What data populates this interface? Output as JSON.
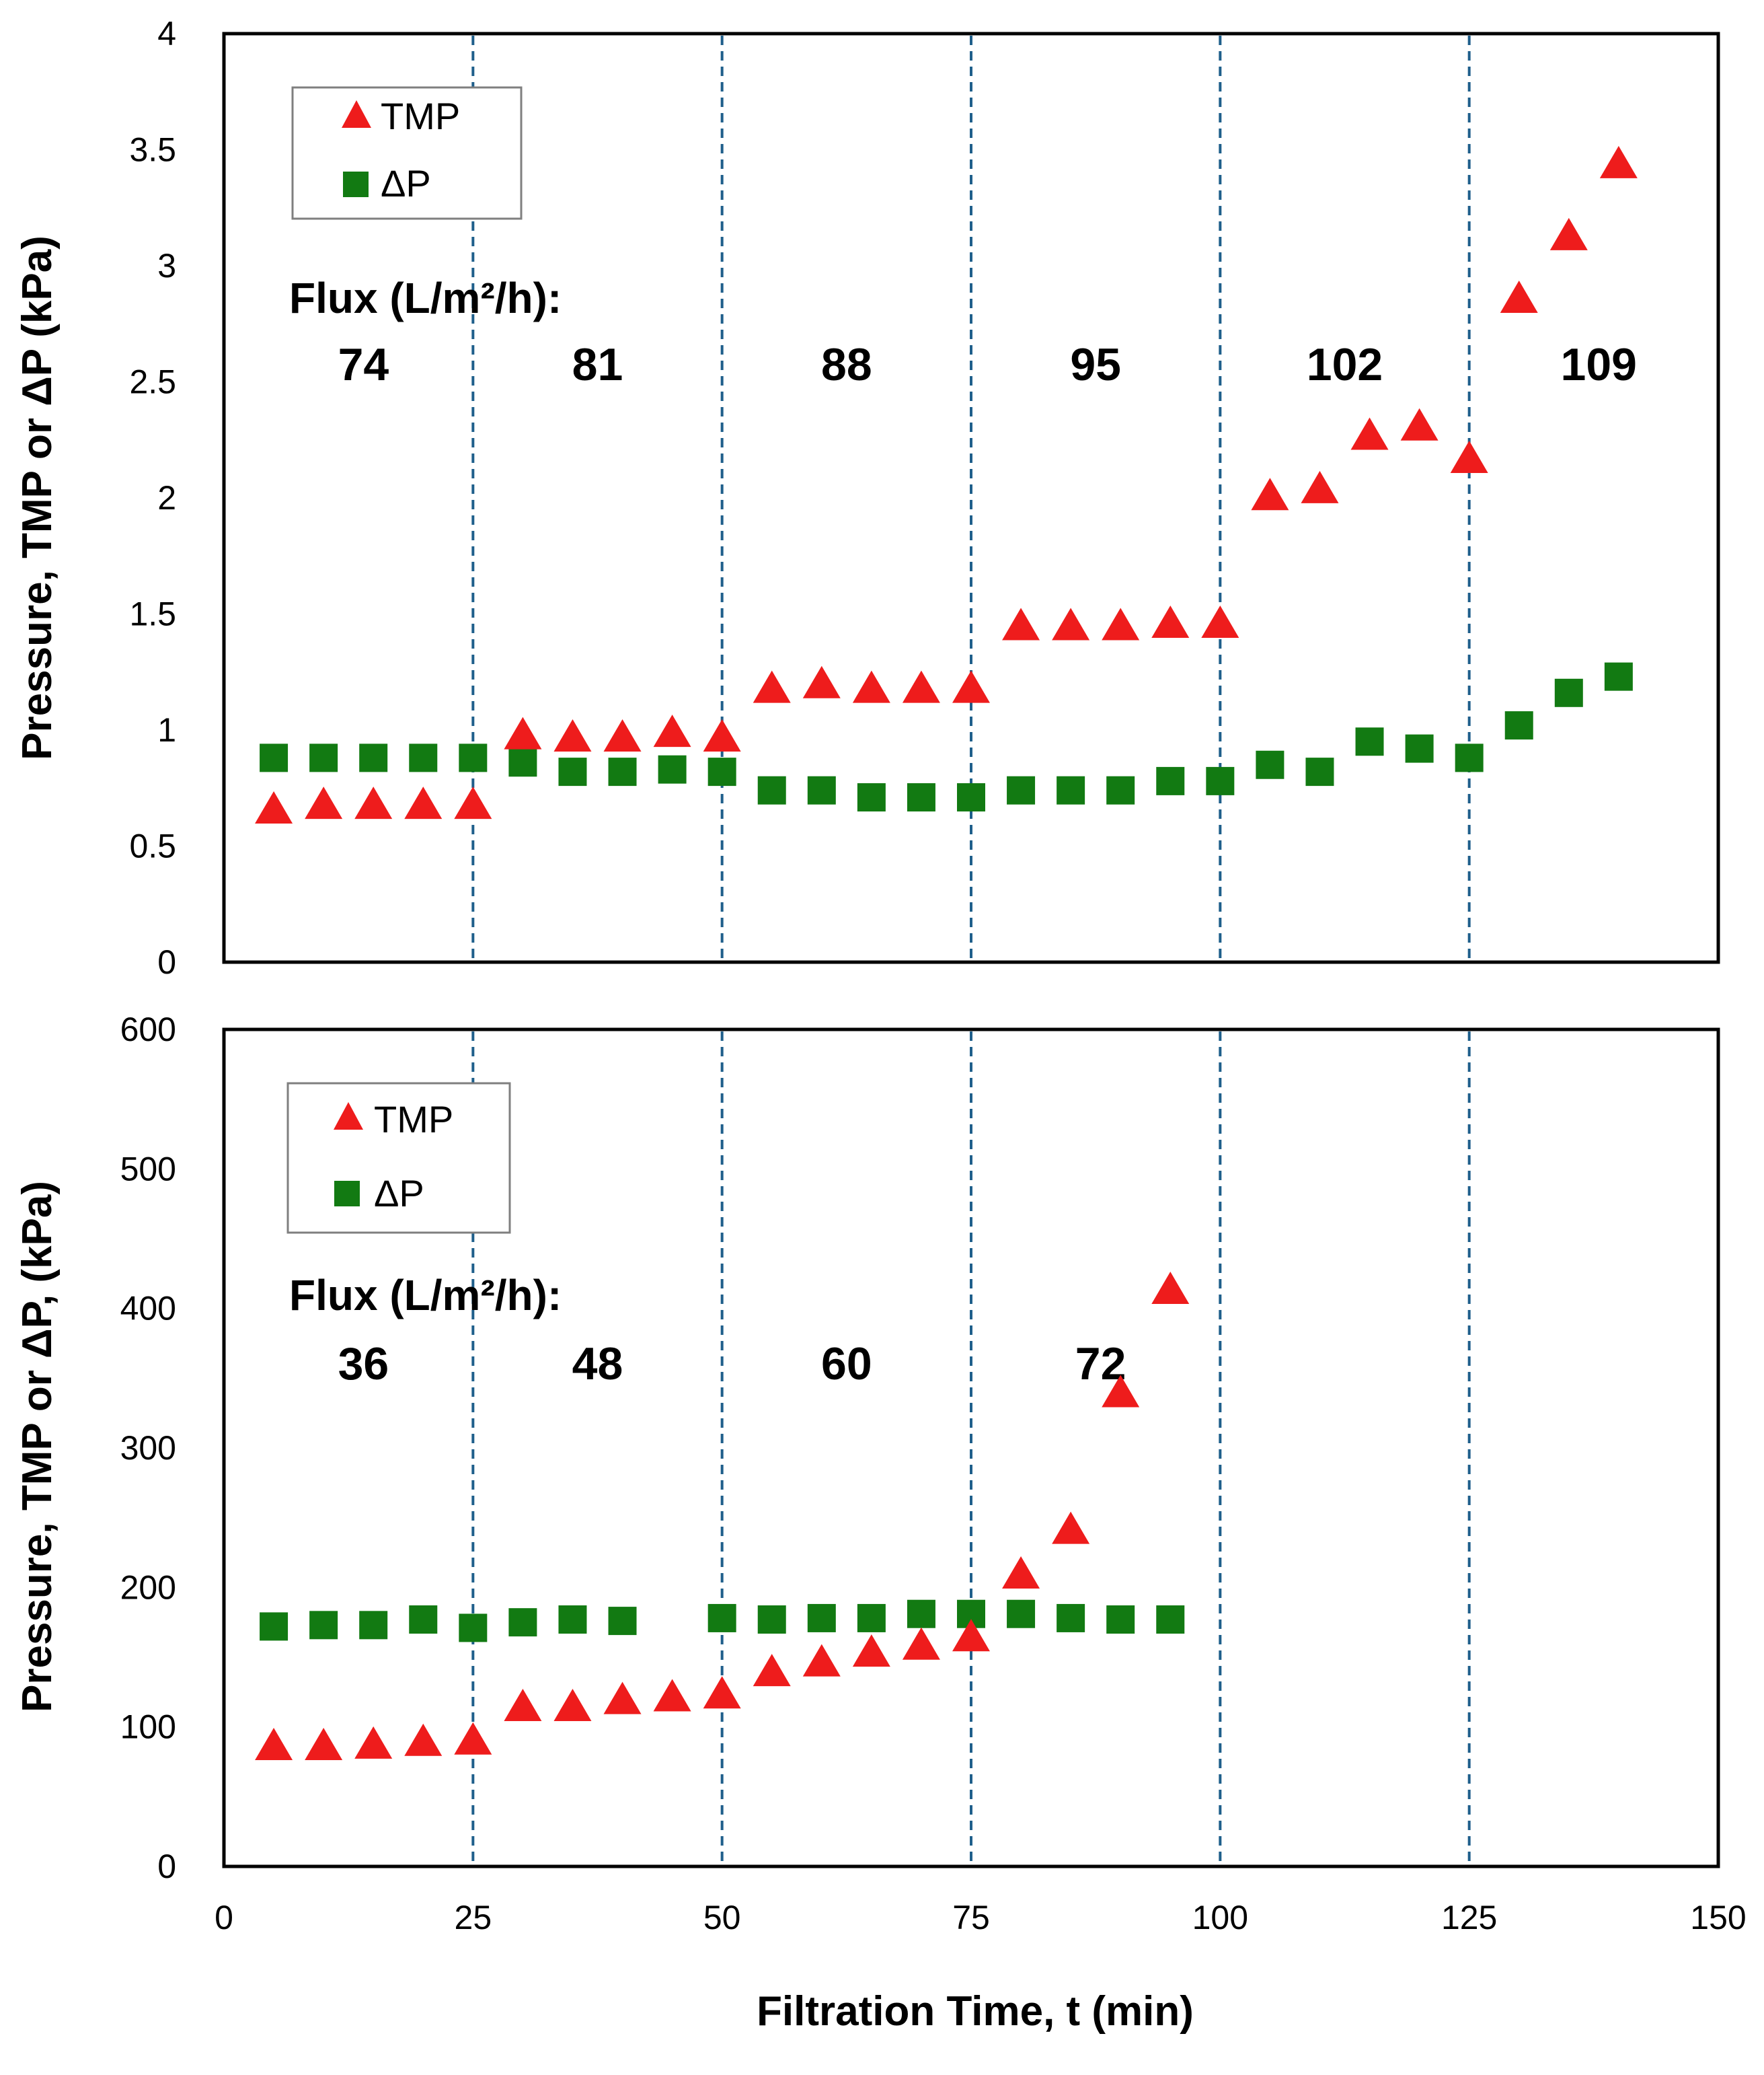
{
  "colors": {
    "tmp": "#ee1c1c",
    "dp": "#127a12",
    "divider": "#1f5f8b",
    "frame": "#000000",
    "legend_border": "#7f7f7f"
  },
  "chart_data": [
    {
      "type": "scatter",
      "panel": "top",
      "ylabel": "Pressure, TMP or ΔP (kPa)",
      "xlim": [
        0,
        150
      ],
      "ylim": [
        0,
        4
      ],
      "y_ticks": [
        "0",
        "0.5",
        "1",
        "1.5",
        "2",
        "2.5",
        "3",
        "3.5",
        "4"
      ],
      "y_tick_values": [
        0,
        0.5,
        1,
        1.5,
        2,
        2.5,
        3,
        3.5,
        4
      ],
      "dividers_x": [
        25,
        50,
        75,
        100,
        125
      ],
      "flux_title": "Flux (L/m²/h):",
      "flux_segments": [
        {
          "label": "74",
          "x": 14
        },
        {
          "label": "81",
          "x": 37.5
        },
        {
          "label": "88",
          "x": 62.5
        },
        {
          "label": "95",
          "x": 87.5
        },
        {
          "label": "102",
          "x": 112.5
        },
        {
          "label": "109",
          "x": 138
        }
      ],
      "legend_position": "top-left",
      "series": [
        {
          "name": "TMP",
          "marker": "triangle",
          "x": [
            5,
            10,
            15,
            20,
            25,
            30,
            35,
            40,
            45,
            50,
            55,
            60,
            65,
            70,
            75,
            80,
            85,
            90,
            95,
            100,
            105,
            110,
            115,
            120,
            125,
            130,
            135,
            140
          ],
          "y": [
            0.65,
            0.67,
            0.67,
            0.67,
            0.67,
            0.97,
            0.96,
            0.96,
            0.98,
            0.96,
            1.17,
            1.19,
            1.17,
            1.17,
            1.17,
            1.44,
            1.44,
            1.44,
            1.45,
            1.45,
            2.0,
            2.03,
            2.26,
            2.3,
            2.16,
            2.85,
            3.12,
            3.43
          ]
        },
        {
          "name": "ΔP",
          "marker": "square",
          "x": [
            5,
            10,
            15,
            20,
            25,
            30,
            35,
            40,
            45,
            50,
            55,
            60,
            65,
            70,
            75,
            80,
            85,
            90,
            95,
            100,
            105,
            110,
            115,
            120,
            125,
            130,
            135,
            140
          ],
          "y": [
            0.88,
            0.88,
            0.88,
            0.88,
            0.88,
            0.86,
            0.82,
            0.82,
            0.83,
            0.82,
            0.74,
            0.74,
            0.71,
            0.71,
            0.71,
            0.74,
            0.74,
            0.74,
            0.78,
            0.78,
            0.85,
            0.82,
            0.95,
            0.92,
            0.88,
            1.02,
            1.16,
            1.23
          ]
        }
      ]
    },
    {
      "type": "scatter",
      "panel": "bottom",
      "xlabel": "Filtration Time, t (min)",
      "ylabel": "Pressure, TMP or ΔP, (kPa)",
      "xlim": [
        0,
        150
      ],
      "ylim": [
        0,
        600
      ],
      "x_ticks": [
        "0",
        "25",
        "50",
        "75",
        "100",
        "125",
        "150"
      ],
      "x_tick_values": [
        0,
        25,
        50,
        75,
        100,
        125,
        150
      ],
      "y_ticks": [
        "0",
        "100",
        "200",
        "300",
        "400",
        "500",
        "600"
      ],
      "y_tick_values": [
        0,
        100,
        200,
        300,
        400,
        500,
        600
      ],
      "dividers_x": [
        25,
        50,
        75,
        100,
        125
      ],
      "flux_title": "Flux (L/m²/h):",
      "flux_segments": [
        {
          "label": "36",
          "x": 14
        },
        {
          "label": "48",
          "x": 37.5
        },
        {
          "label": "60",
          "x": 62.5
        },
        {
          "label": "72",
          "x": 88
        }
      ],
      "legend_position": "top-left",
      "series": [
        {
          "name": "TMP",
          "marker": "triangle",
          "x": [
            5,
            10,
            15,
            20,
            25,
            30,
            35,
            40,
            45,
            50,
            55,
            60,
            65,
            70,
            75,
            80,
            85,
            90,
            95
          ],
          "y": [
            85,
            85,
            86,
            88,
            89,
            113,
            113,
            118,
            120,
            122,
            138,
            145,
            152,
            157,
            163,
            208,
            240,
            338,
            412
          ]
        },
        {
          "name": "ΔP",
          "marker": "square",
          "x": [
            5,
            10,
            15,
            20,
            25,
            30,
            35,
            40,
            50,
            55,
            60,
            65,
            70,
            75,
            80,
            85,
            90,
            95
          ],
          "y": [
            172,
            173,
            173,
            177,
            171,
            175,
            177,
            176,
            178,
            177,
            178,
            178,
            181,
            181,
            181,
            178,
            177,
            177
          ]
        }
      ]
    }
  ]
}
